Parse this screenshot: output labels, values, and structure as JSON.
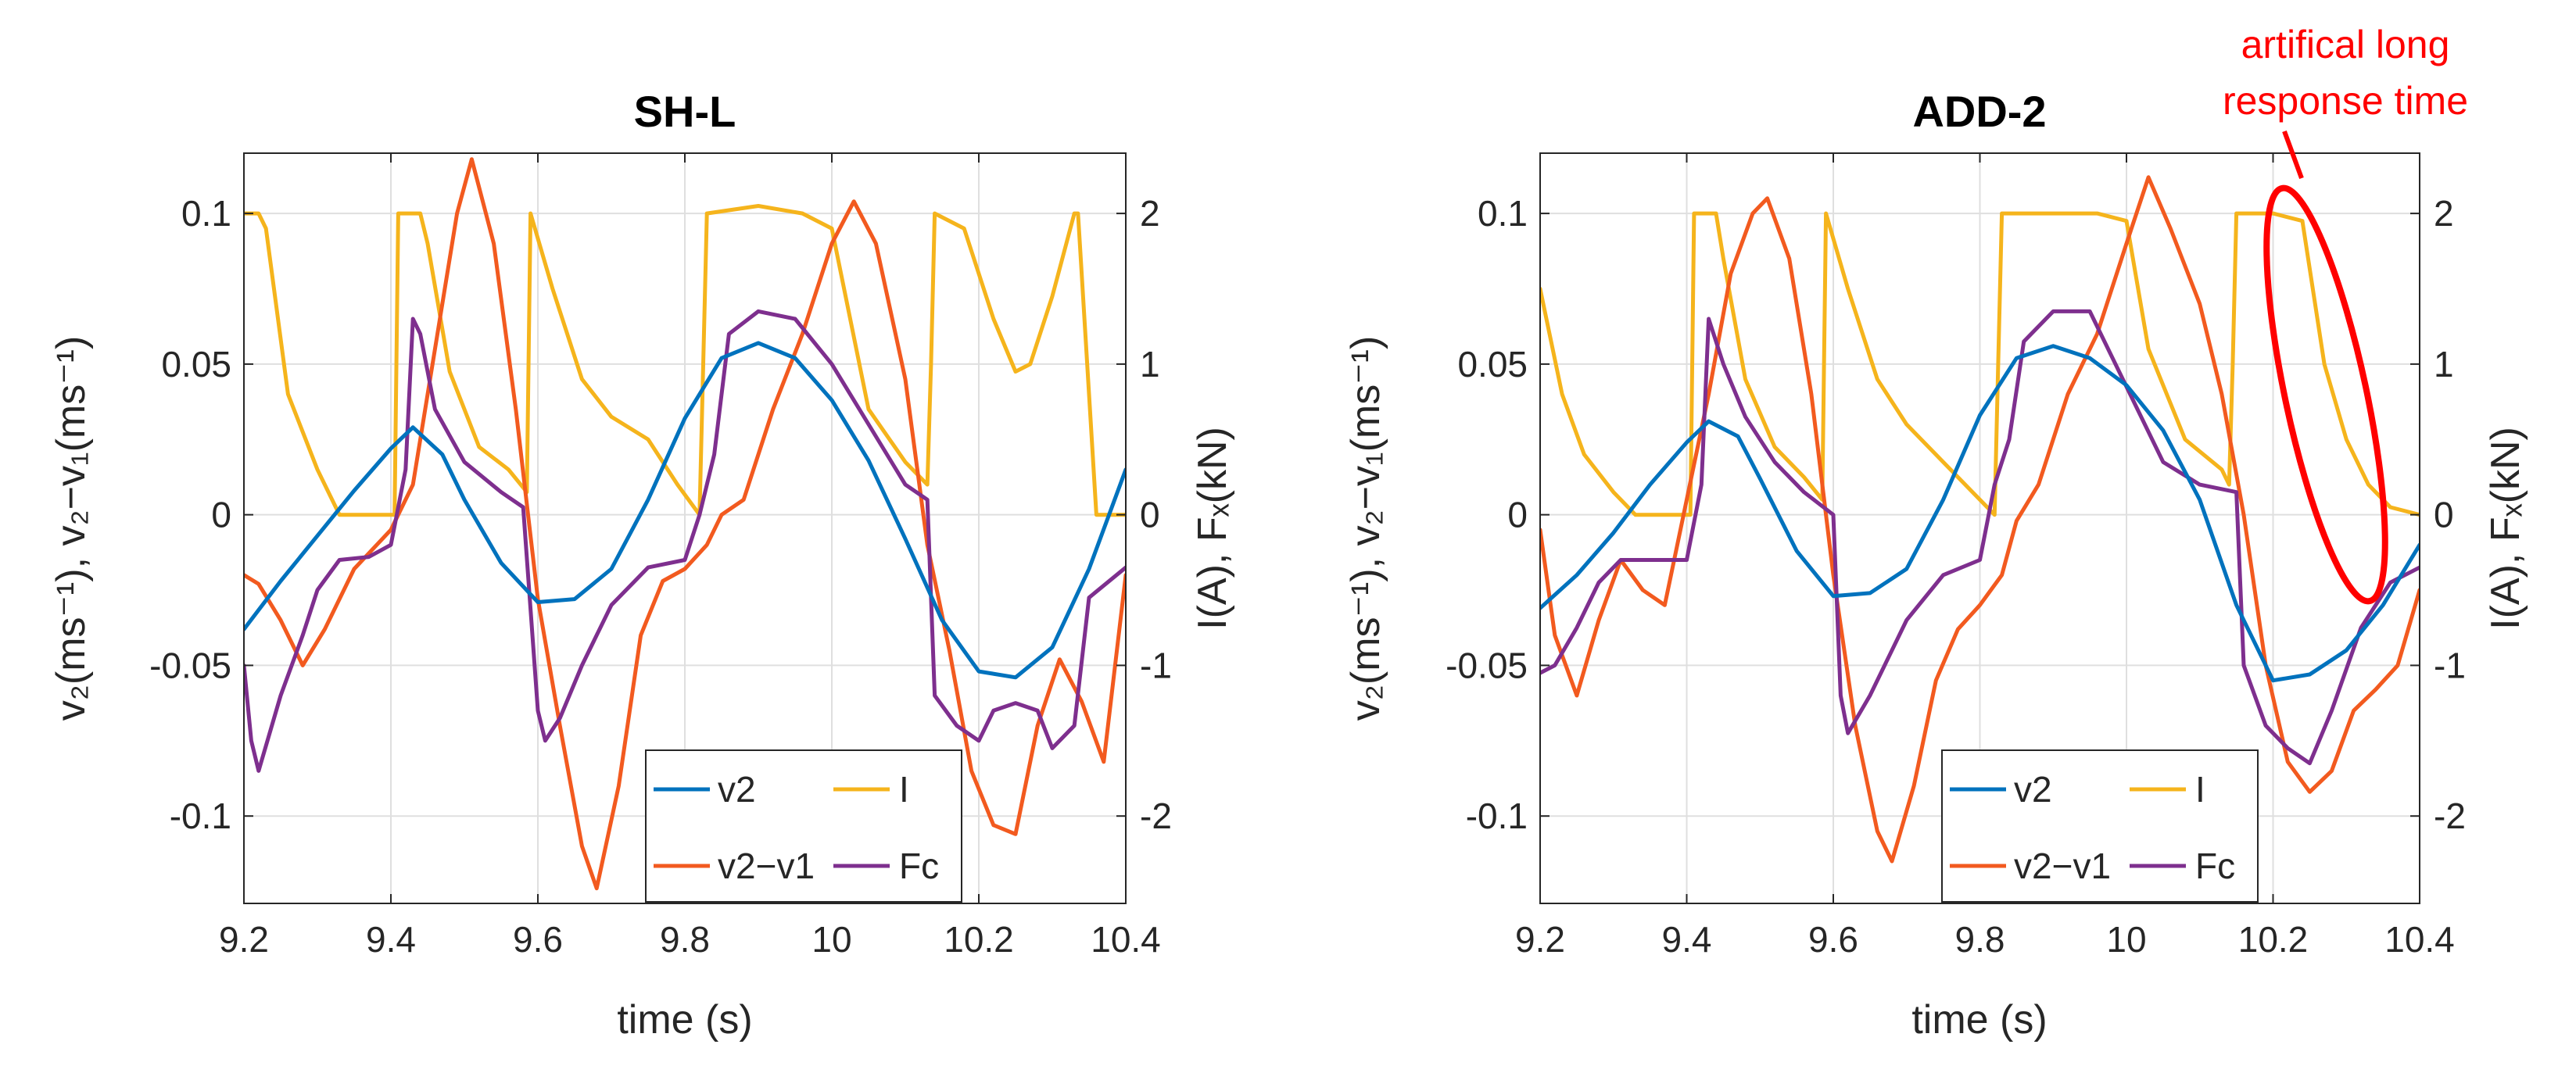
{
  "colors": {
    "v2": "#0072BD",
    "v2v1": "#F25A1F",
    "I": "#F5B41C",
    "Fc": "#7E2F8E",
    "annotation": "#FF0000",
    "axis": "#262626",
    "grid": "#DFDFDF"
  },
  "chart_data": [
    {
      "type": "line",
      "title": "SH-L",
      "xlabel": "time (s)",
      "ylabel_left": "v₂(ms⁻¹),   v₂−v₁(ms⁻¹)",
      "ylabel_right": "I(A),   Fₓ(kN)",
      "xlim": [
        9.2,
        10.4
      ],
      "ylim_left": [
        -0.129,
        0.12
      ],
      "ylim_right": [
        -2.58,
        2.4
      ],
      "xticks": [
        "9.2",
        "9.4",
        "9.6",
        "9.8",
        "10",
        "10.2",
        "10.4"
      ],
      "yticks_left": [
        "0.1",
        "0.05",
        "0",
        "-0.05",
        "-0.1"
      ],
      "yticks_right": [
        "2",
        "1",
        "0",
        "-1",
        "-2"
      ],
      "legend": [
        "v2",
        "I",
        "v2−v1",
        "Fc"
      ],
      "series": [
        {
          "name": "v2",
          "axis": "left",
          "x": [
            9.2,
            9.25,
            9.3,
            9.35,
            9.4,
            9.43,
            9.47,
            9.5,
            9.55,
            9.6,
            9.65,
            9.7,
            9.75,
            9.8,
            9.85,
            9.9,
            9.95,
            10.0,
            10.05,
            10.1,
            10.15,
            10.2,
            10.25,
            10.3,
            10.35,
            10.4
          ],
          "y": [
            -0.038,
            -0.022,
            -0.007,
            0.008,
            0.022,
            0.029,
            0.02,
            0.005,
            -0.016,
            -0.029,
            -0.028,
            -0.018,
            0.005,
            0.032,
            0.052,
            0.057,
            0.052,
            0.038,
            0.018,
            -0.008,
            -0.035,
            -0.052,
            -0.054,
            -0.044,
            -0.018,
            0.015
          ]
        },
        {
          "name": "v2−v1",
          "axis": "left",
          "x": [
            9.2,
            9.22,
            9.25,
            9.28,
            9.31,
            9.35,
            9.4,
            9.43,
            9.46,
            9.49,
            9.51,
            9.54,
            9.57,
            9.6,
            9.63,
            9.66,
            9.68,
            9.71,
            9.74,
            9.77,
            9.8,
            9.83,
            9.85,
            9.88,
            9.92,
            9.96,
            10.0,
            10.03,
            10.06,
            10.1,
            10.13,
            10.16,
            10.19,
            10.22,
            10.25,
            10.28,
            10.31,
            10.34,
            10.37,
            10.4
          ],
          "y": [
            -0.02,
            -0.023,
            -0.035,
            -0.05,
            -0.038,
            -0.018,
            -0.005,
            0.01,
            0.055,
            0.1,
            0.118,
            0.09,
            0.035,
            -0.028,
            -0.07,
            -0.11,
            -0.124,
            -0.09,
            -0.04,
            -0.022,
            -0.018,
            -0.01,
            0.0,
            0.005,
            0.035,
            0.06,
            0.09,
            0.104,
            0.09,
            0.045,
            -0.01,
            -0.045,
            -0.085,
            -0.103,
            -0.106,
            -0.07,
            -0.048,
            -0.062,
            -0.082,
            -0.02
          ]
        },
        {
          "name": "I",
          "axis": "right",
          "x": [
            9.2,
            9.22,
            9.23,
            9.26,
            9.3,
            9.33,
            9.38,
            9.405,
            9.41,
            9.44,
            9.45,
            9.48,
            9.52,
            9.56,
            9.585,
            9.59,
            9.62,
            9.66,
            9.7,
            9.75,
            9.79,
            9.82,
            9.825,
            9.83,
            9.9,
            9.96,
            10.0,
            10.05,
            10.1,
            10.13,
            10.135,
            10.14,
            10.18,
            10.22,
            10.25,
            10.27,
            10.3,
            10.33,
            10.335,
            10.36,
            10.4
          ],
          "y": [
            2.0,
            2.0,
            1.9,
            0.8,
            0.3,
            0.0,
            0.0,
            0.0,
            2.0,
            2.0,
            1.8,
            0.95,
            0.45,
            0.3,
            0.15,
            2.0,
            1.5,
            0.9,
            0.65,
            0.5,
            0.2,
            0.0,
            1.0,
            2.0,
            2.05,
            2.0,
            1.9,
            0.7,
            0.35,
            0.2,
            1.0,
            2.0,
            1.9,
            1.3,
            0.95,
            1.0,
            1.45,
            2.0,
            2.0,
            0.0,
            0.0
          ]
        },
        {
          "name": "Fc",
          "axis": "right",
          "x": [
            9.2,
            9.21,
            9.22,
            9.25,
            9.28,
            9.3,
            9.33,
            9.37,
            9.4,
            9.42,
            9.43,
            9.44,
            9.46,
            9.5,
            9.55,
            9.58,
            9.6,
            9.61,
            9.63,
            9.66,
            9.7,
            9.75,
            9.8,
            9.82,
            9.84,
            9.86,
            9.9,
            9.95,
            10.0,
            10.05,
            10.1,
            10.13,
            10.14,
            10.17,
            10.2,
            10.22,
            10.25,
            10.28,
            10.3,
            10.33,
            10.35,
            10.4
          ],
          "y": [
            -1.0,
            -1.5,
            -1.7,
            -1.2,
            -0.8,
            -0.5,
            -0.3,
            -0.28,
            -0.2,
            0.3,
            1.3,
            1.2,
            0.7,
            0.35,
            0.15,
            0.05,
            -1.3,
            -1.5,
            -1.35,
            -1.0,
            -0.6,
            -0.35,
            -0.3,
            0.0,
            0.4,
            1.2,
            1.35,
            1.3,
            1.0,
            0.6,
            0.2,
            0.1,
            -1.2,
            -1.4,
            -1.5,
            -1.3,
            -1.25,
            -1.3,
            -1.55,
            -1.4,
            -0.55,
            -0.35
          ]
        }
      ]
    },
    {
      "type": "line",
      "title": "ADD-2",
      "xlabel": "time (s)",
      "ylabel_left": "v₂(ms⁻¹),   v₂−v₁(ms⁻¹)",
      "ylabel_right": "I(A),   Fₓ(kN)",
      "xlim": [
        9.2,
        10.4
      ],
      "ylim_left": [
        -0.129,
        0.12
      ],
      "ylim_right": [
        -2.58,
        2.4
      ],
      "xticks": [
        "9.2",
        "9.4",
        "9.6",
        "9.8",
        "10",
        "10.2",
        "10.4"
      ],
      "yticks_left": [
        "0.1",
        "0.05",
        "0",
        "-0.05",
        "-0.1"
      ],
      "yticks_right": [
        "2",
        "1",
        "0",
        "-1",
        "-2"
      ],
      "legend": [
        "v2",
        "I",
        "v2−v1",
        "Fc"
      ],
      "annotation": {
        "text": [
          "artifical long",
          "response time"
        ],
        "target_x": 10.27,
        "target_y_right": 1.0
      },
      "series": [
        {
          "name": "v2",
          "axis": "left",
          "x": [
            9.2,
            9.25,
            9.3,
            9.35,
            9.4,
            9.43,
            9.47,
            9.5,
            9.55,
            9.6,
            9.65,
            9.7,
            9.75,
            9.8,
            9.85,
            9.9,
            9.95,
            10.0,
            10.05,
            10.1,
            10.15,
            10.2,
            10.25,
            10.3,
            10.35,
            10.4
          ],
          "y": [
            -0.031,
            -0.02,
            -0.006,
            0.01,
            0.024,
            0.031,
            0.026,
            0.012,
            -0.012,
            -0.027,
            -0.026,
            -0.018,
            0.005,
            0.033,
            0.052,
            0.056,
            0.052,
            0.043,
            0.028,
            0.005,
            -0.03,
            -0.055,
            -0.053,
            -0.045,
            -0.03,
            -0.01
          ]
        },
        {
          "name": "v2−v1",
          "axis": "left",
          "x": [
            9.2,
            9.22,
            9.25,
            9.28,
            9.31,
            9.34,
            9.37,
            9.4,
            9.43,
            9.46,
            9.49,
            9.51,
            9.54,
            9.57,
            9.6,
            9.63,
            9.66,
            9.68,
            9.71,
            9.74,
            9.77,
            9.8,
            9.83,
            9.85,
            9.88,
            9.92,
            9.96,
            10.0,
            10.03,
            10.06,
            10.1,
            10.13,
            10.16,
            10.19,
            10.22,
            10.25,
            10.28,
            10.31,
            10.34,
            10.37,
            10.4
          ],
          "y": [
            -0.005,
            -0.04,
            -0.06,
            -0.035,
            -0.015,
            -0.025,
            -0.03,
            0.005,
            0.04,
            0.08,
            0.1,
            0.105,
            0.085,
            0.04,
            -0.02,
            -0.07,
            -0.105,
            -0.115,
            -0.09,
            -0.055,
            -0.038,
            -0.03,
            -0.02,
            -0.002,
            0.01,
            0.04,
            0.06,
            0.09,
            0.112,
            0.095,
            0.07,
            0.04,
            0.0,
            -0.05,
            -0.082,
            -0.092,
            -0.085,
            -0.065,
            -0.058,
            -0.05,
            -0.025
          ]
        },
        {
          "name": "I",
          "axis": "right",
          "x": [
            9.2,
            9.23,
            9.26,
            9.3,
            9.33,
            9.38,
            9.405,
            9.41,
            9.44,
            9.45,
            9.48,
            9.52,
            9.56,
            9.585,
            9.59,
            9.62,
            9.66,
            9.7,
            9.75,
            9.8,
            9.82,
            9.825,
            9.83,
            9.9,
            9.96,
            10.0,
            10.03,
            10.08,
            10.13,
            10.14,
            10.145,
            10.15,
            10.2,
            10.24,
            10.27,
            10.3,
            10.33,
            10.36,
            10.4
          ],
          "y": [
            1.5,
            0.8,
            0.4,
            0.15,
            0.0,
            0.0,
            0.0,
            2.0,
            2.0,
            1.7,
            0.9,
            0.45,
            0.25,
            0.1,
            2.0,
            1.5,
            0.9,
            0.6,
            0.35,
            0.1,
            0.0,
            1.0,
            2.0,
            2.0,
            2.0,
            1.95,
            1.1,
            0.5,
            0.3,
            0.2,
            1.0,
            2.0,
            2.0,
            1.95,
            1.0,
            0.5,
            0.2,
            0.05,
            0.0
          ]
        },
        {
          "name": "Fc",
          "axis": "right",
          "x": [
            9.2,
            9.22,
            9.25,
            9.28,
            9.31,
            9.35,
            9.4,
            9.42,
            9.43,
            9.45,
            9.48,
            9.52,
            9.56,
            9.6,
            9.61,
            9.62,
            9.65,
            9.7,
            9.75,
            9.8,
            9.82,
            9.84,
            9.86,
            9.9,
            9.95,
            10.0,
            10.05,
            10.1,
            10.15,
            10.16,
            10.19,
            10.22,
            10.25,
            10.28,
            10.32,
            10.36,
            10.4
          ],
          "y": [
            -1.05,
            -1.0,
            -0.75,
            -0.45,
            -0.3,
            -0.3,
            -0.3,
            0.2,
            1.3,
            1.0,
            0.65,
            0.35,
            0.15,
            0.0,
            -1.2,
            -1.45,
            -1.2,
            -0.7,
            -0.4,
            -0.3,
            0.2,
            0.5,
            1.15,
            1.35,
            1.35,
            0.85,
            0.35,
            0.2,
            0.15,
            -1.0,
            -1.4,
            -1.55,
            -1.65,
            -1.3,
            -0.75,
            -0.45,
            -0.35
          ]
        }
      ]
    }
  ]
}
